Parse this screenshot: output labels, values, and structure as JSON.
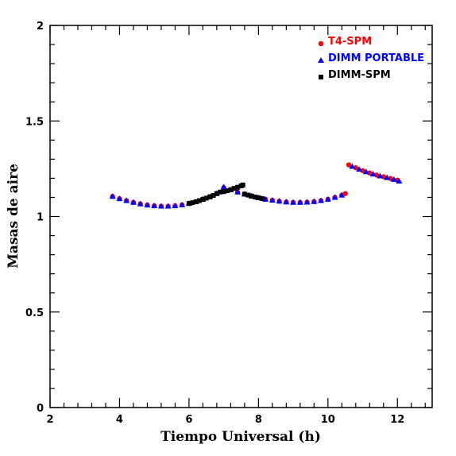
{
  "chart_data": {
    "type": "scatter",
    "xlabel": "Tiempo Universal (h)",
    "ylabel": "Masas de aire",
    "xlim": [
      2,
      13
    ],
    "ylim": [
      0,
      2
    ],
    "xticks": [
      2,
      4,
      6,
      8,
      10,
      12
    ],
    "yticks": [
      0,
      0.5,
      1,
      1.5,
      2
    ],
    "ytick_labels": [
      "0",
      "0.5",
      "1",
      "1.5",
      "2"
    ],
    "grid": false,
    "legend_position": "top-right",
    "series": [
      {
        "name": "T4-SPM",
        "color": "#ff0000",
        "marker": "circle",
        "x": [
          3.8,
          4.0,
          4.2,
          4.4,
          4.6,
          4.8,
          5.0,
          5.2,
          5.4,
          5.6,
          5.8,
          6.0,
          6.2,
          6.4,
          6.6,
          6.8,
          7.0,
          7.2,
          7.4,
          7.6,
          7.8,
          8.0,
          8.2,
          8.4,
          8.6,
          8.8,
          9.0,
          9.2,
          9.4,
          9.6,
          9.8,
          10.0,
          10.2,
          10.4,
          10.5,
          10.6,
          10.8,
          11.0,
          11.2,
          11.4,
          11.6,
          11.8,
          12.0
        ],
        "y": [
          1.105,
          1.093,
          1.083,
          1.074,
          1.066,
          1.06,
          1.056,
          1.054,
          1.054,
          1.056,
          1.061,
          1.068,
          1.077,
          1.09,
          1.103,
          1.12,
          1.15,
          1.14,
          1.128,
          1.117,
          1.107,
          1.098,
          1.09,
          1.085,
          1.08,
          1.076,
          1.074,
          1.074,
          1.075,
          1.078,
          1.083,
          1.09,
          1.1,
          1.112,
          1.12,
          1.27,
          1.255,
          1.24,
          1.228,
          1.217,
          1.208,
          1.199,
          1.19
        ]
      },
      {
        "name": "DIMM PORTABLE",
        "color": "#0000ff",
        "marker": "triangle",
        "x": [
          3.8,
          4.0,
          4.2,
          4.4,
          4.6,
          4.8,
          5.0,
          5.2,
          5.4,
          5.6,
          5.8,
          6.0,
          6.2,
          6.4,
          6.6,
          6.8,
          7.0,
          7.2,
          7.4,
          7.6,
          7.8,
          8.0,
          8.2,
          8.4,
          8.6,
          8.8,
          9.0,
          9.2,
          9.4,
          9.6,
          9.8,
          10.0,
          10.2,
          10.4,
          10.7,
          10.9,
          11.1,
          11.3,
          11.5,
          11.7,
          11.9,
          12.05
        ],
        "y": [
          1.105,
          1.093,
          1.083,
          1.074,
          1.066,
          1.06,
          1.056,
          1.054,
          1.054,
          1.056,
          1.061,
          1.068,
          1.077,
          1.09,
          1.103,
          1.12,
          1.155,
          1.14,
          1.128,
          1.117,
          1.107,
          1.098,
          1.09,
          1.085,
          1.08,
          1.076,
          1.074,
          1.074,
          1.075,
          1.078,
          1.083,
          1.09,
          1.1,
          1.112,
          1.262,
          1.247,
          1.234,
          1.222,
          1.212,
          1.203,
          1.194,
          1.185
        ]
      },
      {
        "name": "DIMM-SPM",
        "color": "#000000",
        "marker": "square",
        "x": [
          6.0,
          6.1,
          6.2,
          6.3,
          6.4,
          6.5,
          6.6,
          6.7,
          6.8,
          6.9,
          7.0,
          7.1,
          7.2,
          7.3,
          7.4,
          7.5,
          7.55,
          7.6,
          7.7,
          7.8,
          7.9,
          8.0,
          8.1
        ],
        "y": [
          1.068,
          1.072,
          1.077,
          1.083,
          1.09,
          1.096,
          1.103,
          1.11,
          1.12,
          1.128,
          1.13,
          1.135,
          1.14,
          1.147,
          1.153,
          1.16,
          1.165,
          1.117,
          1.112,
          1.107,
          1.102,
          1.098,
          1.094
        ]
      }
    ]
  }
}
